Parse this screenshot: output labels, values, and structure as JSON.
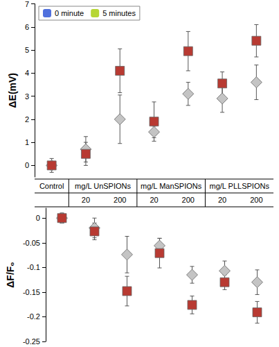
{
  "chart_data": [
    {
      "type": "scatter",
      "y_label": "ΔE(mV)",
      "categories": [
        null,
        "20",
        "200",
        "20",
        "200",
        "20",
        "200"
      ],
      "ylim": [
        -0.5,
        7
      ],
      "yticks": [
        0,
        1,
        2,
        3,
        4,
        5,
        6,
        7
      ],
      "grid": false,
      "legend": "upper left",
      "series": [
        {
          "name": "0 minute",
          "color": "#c4c4c4",
          "marker": "diamond",
          "values": [
            0,
            0.7,
            2.0,
            1.45,
            3.1,
            2.9,
            3.6
          ],
          "errors": [
            0.3,
            0.55,
            1.05,
            0.25,
            0.5,
            0.6,
            0.75
          ]
        },
        {
          "name": "5 minutes",
          "color": "#b83a32",
          "marker": "square",
          "values": [
            0,
            0.5,
            4.1,
            1.9,
            4.95,
            3.55,
            5.4
          ],
          "errors": [
            0.15,
            0.5,
            0.95,
            0.85,
            0.85,
            0.5,
            0.7
          ]
        }
      ]
    },
    {
      "type": "scatter",
      "y_label": "ΔF/F₀",
      "categories": [
        null,
        "20",
        "200",
        "20",
        "200",
        "20",
        "200"
      ],
      "ylim": [
        -0.25,
        0.02
      ],
      "yticks": [
        0,
        -0.05,
        -0.1,
        -0.15,
        -0.2,
        -0.25
      ],
      "grid": false,
      "series": [
        {
          "name": "0 minute",
          "color": "#c4c4c4",
          "marker": "diamond",
          "values": [
            0,
            -0.02,
            -0.074,
            -0.056,
            -0.115,
            -0.107,
            -0.13
          ],
          "errors": [
            0.01,
            0.02,
            0.037,
            0.015,
            0.017,
            0.02,
            0.025
          ]
        },
        {
          "name": "5 minutes",
          "color": "#b83a32",
          "marker": "square",
          "values": [
            0,
            -0.027,
            -0.148,
            -0.071,
            -0.176,
            -0.13,
            -0.191
          ],
          "errors": [
            0.01,
            0.017,
            0.03,
            0.03,
            0.018,
            0.015,
            0.022
          ]
        }
      ]
    }
  ],
  "x_groups": [
    {
      "label": "Control",
      "span": 1
    },
    {
      "label": "mg/L UnSPIONs",
      "span": 2
    },
    {
      "label": "mg/L ManSPIONs",
      "span": 2
    },
    {
      "label": "mg/L PLLSPIONs",
      "span": 2
    }
  ]
}
